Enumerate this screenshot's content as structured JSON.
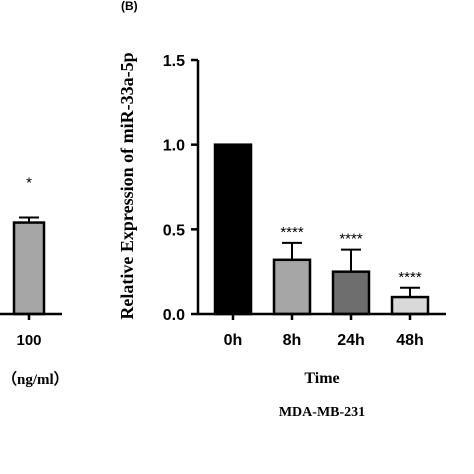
{
  "left_panel": {
    "tick_label": "100",
    "unit_label": "（ng/ml）",
    "significance": "*",
    "bar_value": 0.54,
    "bar_error": 0.03,
    "bar_color": "#a6a6a6"
  },
  "chart_data": {
    "type": "bar",
    "panel_label": "(B)",
    "categories": [
      "0h",
      "8h",
      "24h",
      "48h"
    ],
    "values": [
      1.0,
      0.32,
      0.25,
      0.1
    ],
    "errors": [
      0.0,
      0.1,
      0.13,
      0.055
    ],
    "significance": [
      "",
      "****",
      "****",
      "****"
    ],
    "colors": [
      "#000000",
      "#a6a6a6",
      "#6e6e6e",
      "#d9d9d9"
    ],
    "ylabel": "Relative Expression of miR-33a-5p",
    "xlabel": "Time",
    "subtitle": "MDA-MB-231",
    "ylim": [
      0,
      1.5
    ],
    "yticks": [
      0.0,
      0.5,
      1.0,
      1.5
    ],
    "ytick_labels": [
      "0.0",
      "0.5",
      "1.0",
      "1.5"
    ],
    "grid": false
  }
}
